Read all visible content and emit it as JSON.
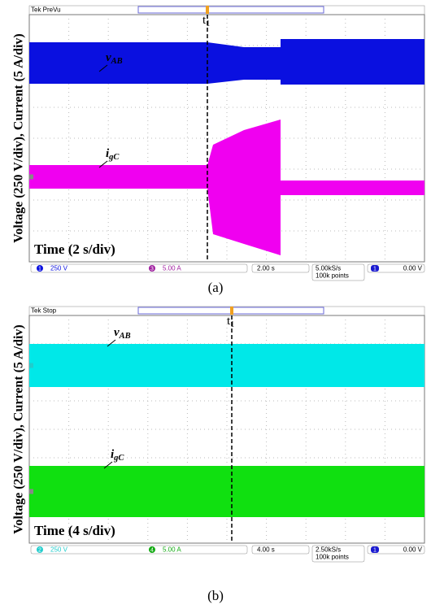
{
  "panels": [
    {
      "header": "Tek PreVu",
      "y_label": "Voltage (250 V/div),  Current (5 A/div)",
      "time_label": "Time (2 s/div)",
      "v_label": {
        "main": "v",
        "sub": "AB"
      },
      "i_label": {
        "main": "i",
        "sub": "gC"
      },
      "marker": {
        "main": "t",
        "sub": "1"
      },
      "status": {
        "ch_a": "1",
        "ch_a_scale": "250 V",
        "ch_b": "3",
        "ch_b_scale": "5.00 A",
        "timebase": "2.00 s",
        "rate": "5.00kS/s",
        "points": "100k points",
        "trig_ch": "1",
        "trig_level": "0.00 V"
      },
      "caption": "(a)"
    },
    {
      "header": "Tek Stop",
      "y_label": "Voltage (250 V/div),  Current (5 A/div)",
      "time_label": "Time (4 s/div)",
      "v_label": {
        "main": "v",
        "sub": "AB"
      },
      "i_label": {
        "main": "i",
        "sub": "gC"
      },
      "marker": {
        "main": "t",
        "sub": "1"
      },
      "status": {
        "ch_a": "2",
        "ch_a_scale": "250 V",
        "ch_b": "4",
        "ch_b_scale": "5.00 A",
        "timebase": "4.00 s",
        "rate": "2.50kS/s",
        "points": "100k points",
        "trig_ch": "1",
        "trig_level": "0.00 V"
      },
      "caption": "(b)"
    }
  ]
}
